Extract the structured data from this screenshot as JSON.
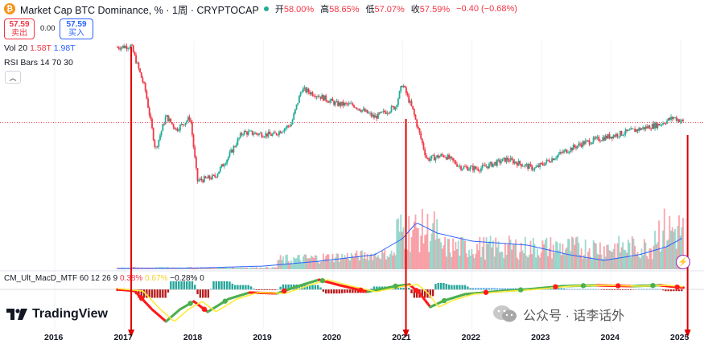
{
  "header": {
    "title": "Market Cap BTC Dominance, % · 1周 · CRYPTOCAP",
    "open_label": "开",
    "open": "58.00%",
    "high_label": "高",
    "high": "58.65%",
    "low_label": "低",
    "low": "57.07%",
    "close_label": "收",
    "close": "57.59%",
    "change": "−0.40 (−0.68%)"
  },
  "trade": {
    "sell_price": "57.59",
    "sell_label": "卖出",
    "spread": "0.00",
    "buy_price": "57.59",
    "buy_label": "买入"
  },
  "indicators": {
    "vol_label": "Vol 20",
    "vol_a": "1.58T",
    "vol_b": "1.98T",
    "rsi_label": "RSI Bars 14 70 30",
    "macd_label": "CM_Ult_MacD_MTF 60 12 26 9",
    "macd_a": "0.38%",
    "macd_b": "0.67%",
    "macd_c": "−0.28%",
    "macd_d": "0"
  },
  "branding": {
    "logo": "TradingView",
    "watermark": "公众号 · 话李话外"
  },
  "colors": {
    "up": "#22ab94",
    "down": "#f23645",
    "ma": "#2962ff",
    "arrow": "#e00000"
  },
  "chart_data": {
    "type": "candlestick",
    "x_axis": {
      "ticks": [
        "2016",
        "2017",
        "2018",
        "2019",
        "2020",
        "2021",
        "2022",
        "2023",
        "2024",
        "2025"
      ]
    },
    "price_series": [
      {
        "date": "2016.9",
        "value": 85.5
      },
      {
        "date": "2017.1",
        "value": 86.0
      },
      {
        "date": "2017.15",
        "value": 82.0
      },
      {
        "date": "2017.3",
        "value": 70.0
      },
      {
        "date": "2017.45",
        "value": 47.5
      },
      {
        "date": "2017.6",
        "value": 60.0
      },
      {
        "date": "2017.75",
        "value": 55.0
      },
      {
        "date": "2017.95",
        "value": 59.5
      },
      {
        "date": "2018.05",
        "value": 36.0
      },
      {
        "date": "2018.3",
        "value": 37.5
      },
      {
        "date": "2018.5",
        "value": 45.0
      },
      {
        "date": "2018.7",
        "value": 54.0
      },
      {
        "date": "2018.9",
        "value": 53.5
      },
      {
        "date": "2019.15",
        "value": 53.0
      },
      {
        "date": "2019.4",
        "value": 57.0
      },
      {
        "date": "2019.55",
        "value": 70.0
      },
      {
        "date": "2019.8",
        "value": 67.5
      },
      {
        "date": "2020.05",
        "value": 64.5
      },
      {
        "date": "2020.3",
        "value": 64.0
      },
      {
        "date": "2020.6",
        "value": 59.5
      },
      {
        "date": "2020.9",
        "value": 63.5
      },
      {
        "date": "2021.0",
        "value": 72.0
      },
      {
        "date": "2021.15",
        "value": 62.0
      },
      {
        "date": "2021.35",
        "value": 44.0
      },
      {
        "date": "2021.6",
        "value": 45.5
      },
      {
        "date": "2021.85",
        "value": 41.0
      },
      {
        "date": "2022.1",
        "value": 40.5
      },
      {
        "date": "2022.5",
        "value": 44.0
      },
      {
        "date": "2022.9",
        "value": 40.5
      },
      {
        "date": "2023.3",
        "value": 46.5
      },
      {
        "date": "2023.6",
        "value": 50.0
      },
      {
        "date": "2023.9",
        "value": 52.0
      },
      {
        "date": "2024.3",
        "value": 54.5
      },
      {
        "date": "2024.7",
        "value": 57.0
      },
      {
        "date": "2024.9",
        "value": 59.5
      },
      {
        "date": "2025.05",
        "value": 57.59
      }
    ],
    "last_close": 57.59,
    "annotations": [
      {
        "type": "vertical-arrow",
        "date": "2017.1"
      },
      {
        "type": "vertical-arrow",
        "date": "2021.05"
      },
      {
        "type": "vertical-arrow",
        "date": "2025.1"
      }
    ]
  }
}
